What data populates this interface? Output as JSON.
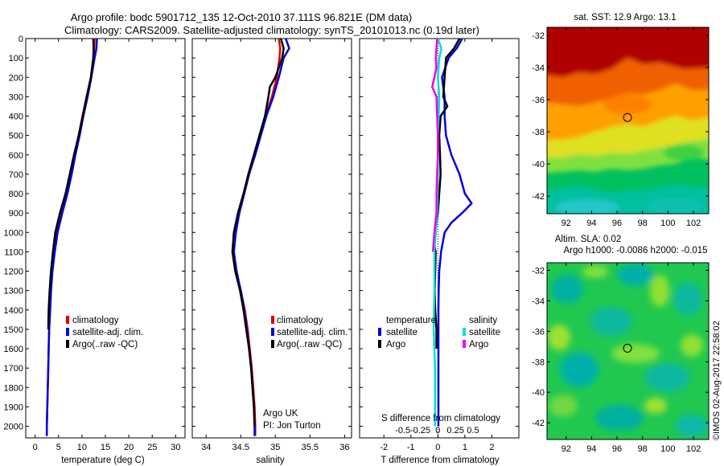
{
  "header": {
    "title_line1": "Argo profile: bodc 5901712_135 12-Oct-2010 37.111S 96.821E (DM data)",
    "title_line2": "Climatology: CARS2009. Satellite-adjusted climatology: synTS_20101013.nc (0.19d later)"
  },
  "colors": {
    "climatology": "#dd0000",
    "satellite": "#0000dd",
    "argo": "#000000",
    "sal_satellite": "#00dddd",
    "sal_argo": "#ee00ee"
  },
  "chart_data": [
    {
      "type": "line",
      "xlabel": "temperature (deg C)",
      "x_ticks": [
        0,
        5,
        10,
        15,
        20,
        25,
        30
      ],
      "xlim": [
        -2,
        32
      ],
      "y_ticks": [
        0,
        100,
        200,
        300,
        400,
        500,
        600,
        700,
        800,
        900,
        1000,
        1100,
        1200,
        1300,
        1400,
        1500,
        1600,
        1700,
        1800,
        1900,
        2000
      ],
      "ylim": [
        0,
        2060
      ],
      "y_reversed": true,
      "legend": [
        "climatology",
        "satellite-adj. clim.",
        "Argo(..raw -QC)"
      ],
      "legend_position": "lower-center",
      "series": [
        {
          "name": "climatology",
          "color": "#dd0000",
          "depth": [
            0,
            50,
            100,
            200,
            300,
            400,
            500,
            600,
            700,
            800,
            900,
            1000,
            1100,
            1200,
            1300,
            1400,
            1500,
            1600,
            1700,
            1800,
            1900,
            2000,
            2050
          ],
          "values": [
            12.7,
            12.6,
            12.5,
            12.0,
            11.0,
            10.1,
            9.3,
            8.4,
            7.6,
            6.7,
            5.6,
            4.6,
            4.0,
            3.6,
            3.4,
            3.2,
            3.0,
            2.9,
            2.8,
            2.7,
            2.6,
            2.5,
            2.5
          ]
        },
        {
          "name": "satellite-adj. clim.",
          "color": "#0000dd",
          "depth": [
            0,
            50,
            100,
            200,
            300,
            400,
            500,
            600,
            700,
            800,
            900,
            1000,
            1100,
            1200,
            1300,
            1400,
            1500,
            1600,
            1700,
            1800,
            1900,
            2000,
            2050
          ],
          "values": [
            13.2,
            13.1,
            12.7,
            12.0,
            11.2,
            10.3,
            9.5,
            8.6,
            7.8,
            6.9,
            5.8,
            4.8,
            4.2,
            3.7,
            3.4,
            3.2,
            3.0,
            2.9,
            2.8,
            2.7,
            2.6,
            2.5,
            2.5
          ]
        },
        {
          "name": "Argo(..raw -QC)",
          "color": "#000000",
          "depth": [
            0,
            50,
            100,
            200,
            300,
            400,
            500,
            600,
            700,
            800,
            900,
            1000,
            1100,
            1200,
            1300,
            1400,
            1500
          ],
          "values": [
            12.4,
            12.5,
            12.4,
            11.9,
            11.0,
            10.2,
            9.3,
            8.3,
            7.4,
            6.5,
            5.3,
            4.3,
            3.8,
            3.4,
            3.1,
            2.9,
            2.8
          ]
        }
      ]
    },
    {
      "type": "line",
      "xlabel": "salinity",
      "x_ticks": [
        34,
        34.5,
        35,
        35.5,
        36
      ],
      "xlim": [
        33.8,
        36.1
      ],
      "ylim": [
        0,
        2060
      ],
      "y_reversed": true,
      "legend": [
        "climatology",
        "satellite-adj. clim.",
        "Argo(..raw -QC)"
      ],
      "legend_position": "lower-right",
      "annotations": [
        "Argo UK",
        "PI: Jon Turton"
      ],
      "series": [
        {
          "name": "climatology",
          "color": "#dd0000",
          "depth": [
            0,
            50,
            100,
            200,
            300,
            400,
            500,
            600,
            700,
            800,
            900,
            1000,
            1100,
            1200,
            1300,
            1400,
            1500,
            1600,
            1700,
            1800,
            1900,
            2000,
            2050
          ],
          "values": [
            35.05,
            35.07,
            35.06,
            35.02,
            34.95,
            34.86,
            34.78,
            34.7,
            34.62,
            34.55,
            34.48,
            34.42,
            34.4,
            34.43,
            34.5,
            34.56,
            34.6,
            34.63,
            34.66,
            34.68,
            34.7,
            34.71,
            34.71
          ]
        },
        {
          "name": "satellite-adj. clim.",
          "color": "#0000dd",
          "depth": [
            0,
            50,
            100,
            200,
            300,
            400,
            500,
            600,
            700,
            800,
            900,
            1000,
            1100,
            1200,
            1300,
            1400,
            1500,
            1600,
            1700,
            1800,
            1900,
            2000,
            2050
          ],
          "values": [
            35.15,
            35.2,
            35.12,
            35.05,
            34.97,
            34.87,
            34.79,
            34.71,
            34.62,
            34.55,
            34.48,
            34.43,
            34.4,
            34.44,
            34.5,
            34.55,
            34.59,
            34.62,
            34.65,
            34.67,
            34.69,
            34.7,
            34.7
          ]
        },
        {
          "name": "Argo(..raw -QC)",
          "color": "#000000",
          "depth": [
            0,
            50,
            100,
            150,
            200,
            250,
            300,
            400,
            500,
            600,
            700,
            800,
            900,
            1000,
            1100,
            1200,
            1300,
            1400,
            1500,
            1600,
            1700,
            1800,
            1900,
            2000
          ],
          "values": [
            35.08,
            35.12,
            35.1,
            35.05,
            35.0,
            34.92,
            34.9,
            34.85,
            34.77,
            34.69,
            34.61,
            34.54,
            34.46,
            34.4,
            34.38,
            34.42,
            34.49,
            34.54,
            34.58,
            34.62,
            34.65,
            34.67,
            34.69,
            34.7
          ]
        }
      ]
    },
    {
      "type": "line",
      "xlabel": "T difference from climatology",
      "x_ticks": [
        -2,
        -1,
        0,
        1,
        2
      ],
      "xlim": [
        -2.9,
        3.0
      ],
      "secondary_xlabel": "S difference from climatology",
      "secondary_x_ticks": [
        -0.5,
        -0.25,
        0,
        0.25,
        0.5
      ],
      "ylim": [
        0,
        2060
      ],
      "y_reversed": true,
      "legend_title_temperature": "temperature",
      "legend_title_salinity": "salinity",
      "legend_temperature": [
        "satellite",
        "Argo"
      ],
      "legend_salinity": [
        "satellite",
        "Argo"
      ],
      "series": [
        {
          "name": "satellite",
          "color": "#0000dd",
          "depth": [
            0,
            50,
            100,
            200,
            300,
            400,
            500,
            600,
            700,
            800,
            850,
            900,
            950,
            1000,
            1100,
            1200,
            1300,
            1400,
            1500,
            1600,
            1700,
            1800,
            1900,
            2000
          ],
          "values": [
            0.9,
            0.7,
            0.4,
            0.15,
            0.25,
            0.25,
            0.3,
            0.5,
            0.8,
            1.0,
            1.25,
            0.9,
            0.5,
            0.25,
            0.12,
            0.05,
            0.03,
            0.02,
            0.02,
            0.02,
            0.02,
            0.02,
            0.02,
            0.02
          ]
        },
        {
          "name": "Argo",
          "color": "#000000",
          "depth": [
            0,
            50,
            100,
            200,
            300,
            350,
            400,
            500,
            600,
            700,
            800,
            900,
            1000,
            1050,
            1100,
            1200,
            1300,
            1400,
            1500,
            1600
          ],
          "values": [
            0.8,
            0.6,
            0.3,
            0.25,
            0.2,
            0.35,
            0.1,
            0.05,
            0.08,
            0.1,
            0.05,
            0.0,
            -0.1,
            -0.15,
            -0.08,
            -0.1,
            -0.12,
            -0.1,
            -0.05,
            -0.05
          ]
        },
        {
          "name": "sal-satellite",
          "color": "#00dddd",
          "depth": [
            0,
            50,
            100,
            200,
            300,
            400,
            500,
            700,
            900,
            1100,
            1300,
            1500,
            1700,
            1900,
            2000
          ],
          "values": [
            0.0,
            0.05,
            0.02,
            0.0,
            0.02,
            0.01,
            0.0,
            0.0,
            -0.01,
            -0.05,
            -0.05,
            -0.06,
            -0.04,
            -0.04,
            -0.04
          ]
        },
        {
          "name": "sal-Argo",
          "color": "#ee00ee",
          "depth": [
            0,
            50,
            100,
            150,
            200,
            250,
            300,
            400,
            500,
            600,
            700,
            800,
            900,
            1000,
            1100
          ],
          "values": [
            -0.01,
            -0.02,
            -0.03,
            -0.02,
            -0.05,
            -0.08,
            -0.02,
            -0.01,
            0.0,
            0.0,
            -0.01,
            -0.02,
            -0.02,
            -0.05,
            -0.07
          ]
        }
      ]
    },
    {
      "type": "heatmap",
      "title": "sat. SST: 12.9  Argo: 13.1",
      "x_ticks": [
        92,
        94,
        96,
        98,
        100,
        102
      ],
      "y_ticks": [
        -32,
        -34,
        -36,
        -38,
        -40,
        -42
      ],
      "xlim": [
        90.5,
        103.2
      ],
      "ylim": [
        -43.1,
        -31.5
      ],
      "marker": {
        "lon": 96.821,
        "lat": -37.111
      },
      "colormap": "jet"
    },
    {
      "type": "heatmap",
      "title_line1": "Altim. SLA: 0.02",
      "title_line2": "Argo h1000: -0.0086 h2000: -0.015",
      "x_ticks": [
        92,
        94,
        96,
        98,
        100,
        102
      ],
      "y_ticks": [
        -32,
        -34,
        -36,
        -38,
        -40,
        -42
      ],
      "xlim": [
        90.5,
        103.2
      ],
      "ylim": [
        -43.1,
        -31.5
      ],
      "marker": {
        "lon": 96.821,
        "lat": -37.111
      },
      "colormap": "jet"
    }
  ],
  "credit": "©IMOS 02-Aug-2017 22:58:02"
}
